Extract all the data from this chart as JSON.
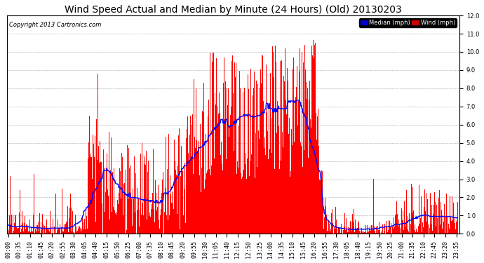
{
  "title": "Wind Speed Actual and Median by Minute (24 Hours) (Old) 20130203",
  "copyright": "Copyright 2013 Cartronics.com",
  "ylim": [
    0.0,
    12.0
  ],
  "yticks": [
    0.0,
    1.0,
    2.0,
    3.0,
    4.0,
    5.0,
    6.0,
    7.0,
    8.0,
    9.0,
    10.0,
    11.0,
    12.0
  ],
  "bar_color": "#ff0000",
  "median_color": "#0000ff",
  "background_color": "#ffffff",
  "grid_color": "#bbbbbb",
  "legend_median_bg": "#0000cc",
  "legend_wind_bg": "#cc0000",
  "title_fontsize": 10,
  "tick_fontsize": 6,
  "bar_width": 1.0,
  "xtick_step_minutes": 35,
  "median_window": 60
}
